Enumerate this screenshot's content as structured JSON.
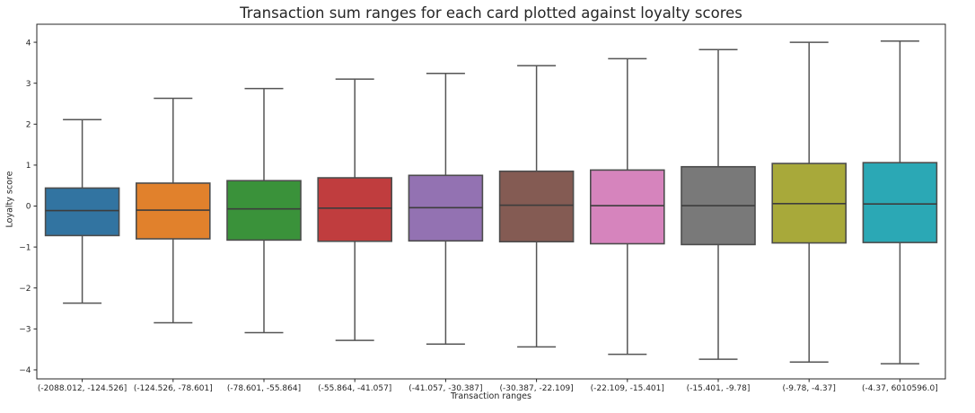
{
  "chart_data": {
    "type": "boxplot",
    "title": "Transaction sum ranges for each card plotted against loyalty scores",
    "xlabel": "Transaction ranges",
    "ylabel": "Loyalty score",
    "ylim": [
      -4.22,
      4.44
    ],
    "yticks": [
      -4,
      -3,
      -2,
      -1,
      0,
      1,
      2,
      3,
      4
    ],
    "ytick_labels": [
      "−4",
      "−3",
      "−2",
      "−1",
      "0",
      "1",
      "2",
      "3",
      "4"
    ],
    "grid": false,
    "legend": false,
    "colors": {
      "background": "#ffffff",
      "spine": "#262626",
      "text": "#262626",
      "box_edge": "#4d4d4d",
      "whisker": "#555555",
      "median": "#3d3d3d"
    },
    "categories": [
      "(-2088.012, -124.526]",
      "(-124.526, -78.601]",
      "(-78.601, -55.864]",
      "(-55.864, -41.057]",
      "(-41.057, -30.387]",
      "(-30.387, -22.109]",
      "(-22.109, -15.401]",
      "(-15.401, -9.78]",
      "(-9.78, -4.37]",
      "(-4.37, 6010596.0]"
    ],
    "series": [
      {
        "label": "(-2088.012, -124.526]",
        "color": "#3274a1",
        "whisker_low": -2.37,
        "q1": -0.72,
        "median": -0.11,
        "q3": 0.44,
        "whisker_high": 2.11
      },
      {
        "label": "(-124.526, -78.601]",
        "color": "#e1812c",
        "whisker_low": -2.85,
        "q1": -0.8,
        "median": -0.1,
        "q3": 0.56,
        "whisker_high": 2.63
      },
      {
        "label": "(-78.601, -55.864]",
        "color": "#3a923a",
        "whisker_low": -3.09,
        "q1": -0.83,
        "median": -0.07,
        "q3": 0.62,
        "whisker_high": 2.87
      },
      {
        "label": "(-55.864, -41.057]",
        "color": "#c03d3e",
        "whisker_low": -3.28,
        "q1": -0.86,
        "median": -0.05,
        "q3": 0.69,
        "whisker_high": 3.1
      },
      {
        "label": "(-41.057, -30.387]",
        "color": "#9372b2",
        "whisker_low": -3.37,
        "q1": -0.85,
        "median": -0.04,
        "q3": 0.75,
        "whisker_high": 3.24
      },
      {
        "label": "(-30.387, -22.109]",
        "color": "#845b53",
        "whisker_low": -3.44,
        "q1": -0.87,
        "median": 0.02,
        "q3": 0.85,
        "whisker_high": 3.43
      },
      {
        "label": "(-22.109, -15.401]",
        "color": "#d684bd",
        "whisker_low": -3.62,
        "q1": -0.92,
        "median": 0.01,
        "q3": 0.88,
        "whisker_high": 3.6
      },
      {
        "label": "(-15.401, -9.78]",
        "color": "#797979",
        "whisker_low": -3.74,
        "q1": -0.94,
        "median": 0.01,
        "q3": 0.96,
        "whisker_high": 3.82
      },
      {
        "label": "(-9.78, -4.37]",
        "color": "#a8a93a",
        "whisker_low": -3.81,
        "q1": -0.9,
        "median": 0.06,
        "q3": 1.04,
        "whisker_high": 4.0
      },
      {
        "label": "(-4.37, 6010596.0]",
        "color": "#2ba8b5",
        "whisker_low": -3.85,
        "q1": -0.89,
        "median": 0.05,
        "q3": 1.06,
        "whisker_high": 4.03
      }
    ]
  }
}
